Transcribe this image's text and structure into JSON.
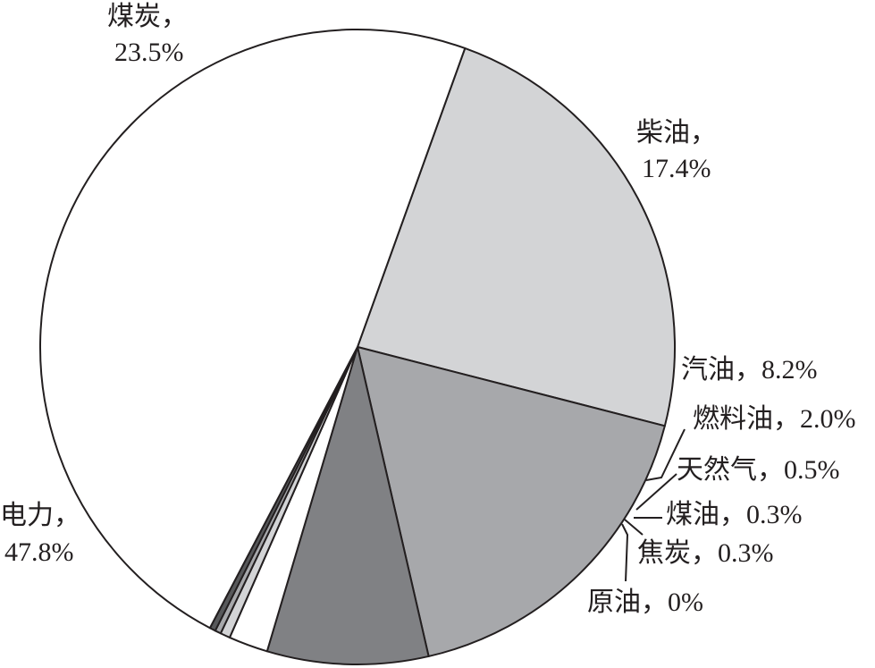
{
  "chart_data": {
    "type": "pie",
    "categories": [
      "煤炭",
      "柴油",
      "汽油",
      "燃料油",
      "天然气",
      "煤油",
      "焦炭",
      "原油",
      "电力"
    ],
    "values": [
      23.5,
      17.4,
      8.2,
      2.0,
      0.5,
      0.3,
      0.3,
      0,
      47.8
    ],
    "data_labels": [
      "23.5%",
      "17.4%",
      "8.2%",
      "2.0%",
      "0.5%",
      "0.3%",
      "0.3%",
      "0%",
      "47.8%"
    ],
    "separator": "，",
    "colors": [
      "#d3d4d6",
      "#a7a8ab",
      "#808184",
      "#ffffff",
      "#d3d4d6",
      "#a7a8ab",
      "#58595b",
      "#231f20",
      "#ffffff"
    ],
    "start_angle_deg": 19.8,
    "direction": "clockwise"
  }
}
